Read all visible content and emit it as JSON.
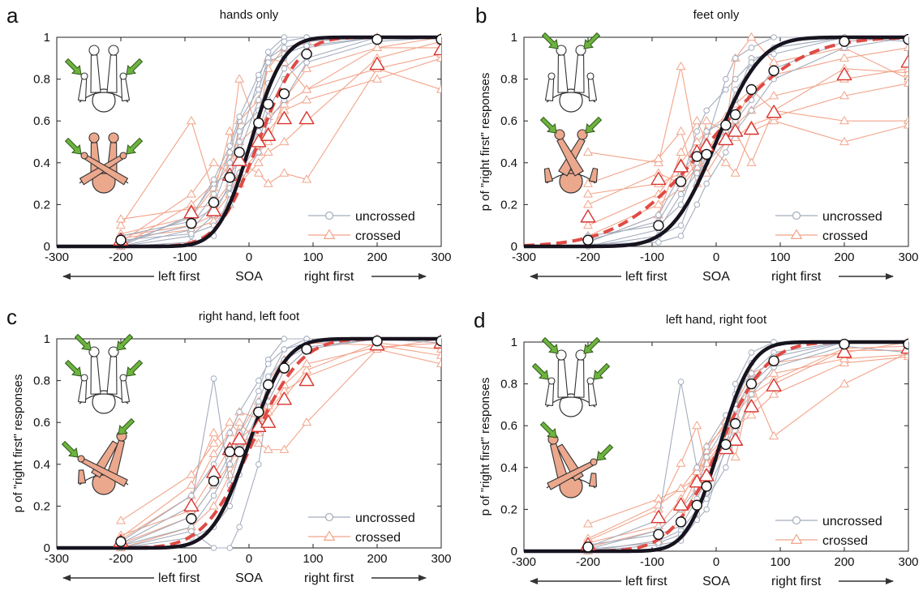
{
  "colors": {
    "uncrossed_individual": "#a4adbd",
    "crossed_individual": "#f2a48a",
    "uncrossed_fit": "#17131f",
    "crossed_fit": "#e04a44",
    "crossed_marker": "#d9342f",
    "arrow_green": "#6db33f",
    "skin": "#eca88d"
  },
  "chart_data": [
    {
      "type": "line",
      "letter": "a",
      "title": "hands only",
      "ylabel": "",
      "xlabel_center": "SOA",
      "xlabel_left": "left first",
      "xlabel_right": "right first",
      "xlim": [
        -300,
        300
      ],
      "ylim": [
        0,
        1
      ],
      "xticks": [
        -300,
        -200,
        -100,
        0,
        100,
        200,
        300
      ],
      "yticks": [
        0,
        0.2,
        0.4,
        0.6,
        0.8,
        1
      ],
      "x": [
        -200,
        -90,
        -55,
        -30,
        -15,
        15,
        30,
        55,
        90,
        200,
        300
      ],
      "fits": {
        "uncrossed_mu": 3,
        "uncrossed_sigma": 40,
        "crossed_mu": 15,
        "crossed_sigma": 50
      },
      "series": [
        {
          "name": "uncrossed",
          "values": [
            0.03,
            0.11,
            0.21,
            0.33,
            0.45,
            0.59,
            0.68,
            0.73,
            0.92,
            0.99,
            0.99
          ]
        },
        {
          "name": "crossed",
          "values": [
            0.03,
            0.16,
            0.17,
            0.34,
            0.41,
            0.5,
            0.53,
            0.61,
            0.61,
            0.87,
            0.94
          ]
        }
      ],
      "individual_uncrossed": [
        [
          0.0,
          0.05,
          0.15,
          0.3,
          0.5,
          0.8,
          0.93,
          1.0,
          1.0,
          1.0,
          1.0
        ],
        [
          0.02,
          0.1,
          0.25,
          0.45,
          0.6,
          0.75,
          0.9,
          0.98,
          1.0,
          1.0,
          1.0
        ],
        [
          0.0,
          0.15,
          0.3,
          0.35,
          0.4,
          0.55,
          0.7,
          0.85,
          0.95,
          1.0,
          1.0
        ],
        [
          0.05,
          0.12,
          0.18,
          0.28,
          0.35,
          0.5,
          0.65,
          0.8,
          0.9,
          1.0,
          1.0
        ],
        [
          0.0,
          0.08,
          0.2,
          0.4,
          0.55,
          0.65,
          0.78,
          0.9,
          1.0,
          1.0,
          1.0
        ],
        [
          0.03,
          0.06,
          0.1,
          0.2,
          0.3,
          0.45,
          0.6,
          0.7,
          0.88,
          0.98,
          1.0
        ],
        [
          0.01,
          0.14,
          0.32,
          0.48,
          0.62,
          0.82,
          0.9,
          0.95,
          0.98,
          1.0,
          1.0
        ],
        [
          0.0,
          0.02,
          0.05,
          0.25,
          0.45,
          0.7,
          0.88,
          0.92,
          0.96,
          1.0,
          1.0
        ]
      ],
      "individual_crossed": [
        [
          0.1,
          0.6,
          0.25,
          0.55,
          0.4,
          0.35,
          0.3,
          0.35,
          0.32,
          0.85,
          0.75
        ],
        [
          0.0,
          0.2,
          0.3,
          0.45,
          0.8,
          0.55,
          0.9,
          0.88,
          0.75,
          0.95,
          0.95
        ],
        [
          0.05,
          0.1,
          0.15,
          0.25,
          0.35,
          0.45,
          0.5,
          0.7,
          0.85,
          0.95,
          1.0
        ],
        [
          0.02,
          0.25,
          0.4,
          0.35,
          0.3,
          0.4,
          0.45,
          0.5,
          0.6,
          0.9,
          0.98
        ],
        [
          0.13,
          0.18,
          0.2,
          0.3,
          0.6,
          0.7,
          0.85,
          0.95,
          0.98,
          1.0,
          1.0
        ],
        [
          0.04,
          0.08,
          0.12,
          0.2,
          0.3,
          0.45,
          0.55,
          0.65,
          0.7,
          0.8,
          0.9
        ],
        [
          0.06,
          0.14,
          0.28,
          0.4,
          0.5,
          0.58,
          0.62,
          0.68,
          0.75,
          0.85,
          0.92
        ]
      ],
      "legend": [
        "uncrossed",
        "crossed"
      ],
      "icons": {
        "top_crossed": false,
        "top_label": "hands",
        "bottom_crossed": true,
        "bottom_label": "hands"
      }
    },
    {
      "type": "line",
      "letter": "b",
      "title": "feet only",
      "ylabel": "p of \"right first\" responses",
      "xlabel_center": "SOA",
      "xlabel_left": "left first",
      "xlabel_right": "right first",
      "xlim": [
        -300,
        300
      ],
      "ylim": [
        0,
        1
      ],
      "xticks": [
        -300,
        -200,
        -100,
        0,
        100,
        200,
        300
      ],
      "yticks": [
        0,
        0.2,
        0.4,
        0.6,
        0.8,
        1
      ],
      "x": [
        -200,
        -90,
        -55,
        -30,
        -15,
        15,
        30,
        55,
        90,
        200,
        300
      ],
      "fits": {
        "uncrossed_mu": 0,
        "uncrossed_sigma": 55,
        "crossed_mu": -10,
        "crossed_sigma": 110
      },
      "series": [
        {
          "name": "uncrossed",
          "values": [
            0.03,
            0.1,
            0.31,
            0.43,
            0.44,
            0.58,
            0.63,
            0.75,
            0.84,
            0.98,
            0.99
          ]
        },
        {
          "name": "crossed",
          "values": [
            0.14,
            0.32,
            0.38,
            0.45,
            0.48,
            0.51,
            0.55,
            0.56,
            0.64,
            0.82,
            0.88
          ]
        }
      ],
      "individual_uncrossed": [
        [
          0.0,
          0.05,
          0.1,
          0.3,
          0.5,
          0.8,
          0.9,
          0.95,
          1.0,
          1.0,
          1.0
        ],
        [
          0.02,
          0.15,
          0.35,
          0.45,
          0.55,
          0.6,
          0.75,
          0.85,
          0.95,
          1.0,
          0.98
        ],
        [
          0.05,
          0.1,
          0.2,
          0.4,
          0.45,
          0.55,
          0.7,
          0.9,
          0.92,
          1.0,
          1.0
        ],
        [
          0.0,
          0.08,
          0.25,
          0.35,
          0.4,
          0.5,
          0.6,
          0.7,
          0.85,
          0.98,
          1.0
        ],
        [
          0.03,
          0.12,
          0.3,
          0.55,
          0.65,
          0.75,
          0.8,
          0.88,
          0.95,
          1.0,
          1.0
        ],
        [
          0.01,
          0.02,
          0.05,
          0.2,
          0.3,
          0.45,
          0.55,
          0.65,
          0.8,
          0.95,
          1.0
        ]
      ],
      "individual_crossed": [
        [
          0.45,
          0.4,
          0.86,
          0.45,
          0.35,
          0.5,
          0.6,
          0.75,
          0.65,
          0.6,
          0.6
        ],
        [
          0.2,
          0.35,
          0.3,
          0.4,
          0.6,
          0.55,
          0.9,
          1.0,
          0.88,
          0.95,
          0.8
        ],
        [
          0.02,
          0.15,
          0.45,
          0.6,
          0.5,
          0.4,
          0.35,
          0.55,
          0.6,
          0.5,
          0.58
        ],
        [
          0.3,
          0.42,
          0.55,
          0.3,
          0.45,
          0.6,
          0.55,
          0.4,
          0.65,
          0.85,
          0.83
        ],
        [
          0.1,
          0.25,
          0.4,
          0.5,
          0.55,
          0.62,
          0.68,
          0.75,
          0.82,
          0.9,
          0.95
        ],
        [
          0.05,
          0.2,
          0.28,
          0.38,
          0.45,
          0.52,
          0.58,
          0.65,
          0.72,
          0.8,
          0.85
        ],
        [
          0.25,
          0.3,
          0.35,
          0.42,
          0.48,
          0.5,
          0.52,
          0.58,
          0.62,
          0.72,
          0.78
        ]
      ],
      "legend": [
        "uncrossed",
        "crossed"
      ],
      "icons": {
        "top_crossed": false,
        "top_label": "feet",
        "bottom_crossed": true,
        "bottom_label": "feet"
      }
    },
    {
      "type": "line",
      "letter": "c",
      "title": "right hand, left foot",
      "ylabel": "p of \"right first\" responses",
      "xlabel_center": "SOA",
      "xlabel_left": "left first",
      "xlabel_right": "right first",
      "xlim": [
        -300,
        300
      ],
      "ylim": [
        0,
        1
      ],
      "xticks": [
        -300,
        -200,
        -100,
        0,
        100,
        200,
        300
      ],
      "yticks": [
        0,
        0.2,
        0.4,
        0.6,
        0.8,
        1
      ],
      "x": [
        -200,
        -90,
        -55,
        -30,
        -15,
        15,
        30,
        55,
        90,
        200,
        300
      ],
      "fits": {
        "uncrossed_mu": 0,
        "uncrossed_sigma": 45,
        "crossed_mu": 5,
        "crossed_sigma": 60
      },
      "series": [
        {
          "name": "uncrossed",
          "values": [
            0.03,
            0.14,
            0.32,
            0.46,
            0.46,
            0.65,
            0.78,
            0.86,
            0.95,
            0.99,
            0.99
          ]
        },
        {
          "name": "crossed",
          "values": [
            0.03,
            0.2,
            0.36,
            0.47,
            0.52,
            0.58,
            0.6,
            0.71,
            0.8,
            0.97,
            0.98
          ]
        }
      ],
      "individual_uncrossed": [
        [
          0.0,
          0.05,
          0.1,
          0.2,
          0.35,
          0.6,
          0.8,
          0.95,
          1.0,
          1.0,
          1.0
        ],
        [
          0.02,
          0.2,
          0.81,
          0.3,
          0.45,
          0.65,
          0.75,
          0.9,
          0.98,
          1.0,
          1.0
        ],
        [
          0.01,
          0.1,
          0.25,
          0.4,
          0.55,
          0.75,
          0.9,
          1.0,
          1.0,
          1.0,
          1.0
        ],
        [
          0.0,
          0.08,
          0.0,
          0.0,
          0.1,
          0.4,
          0.7,
          0.85,
          0.95,
          1.0,
          0.98
        ],
        [
          0.03,
          0.25,
          0.4,
          0.55,
          0.65,
          0.8,
          0.88,
          0.95,
          0.98,
          1.0,
          1.0
        ],
        [
          0.01,
          0.15,
          0.3,
          0.45,
          0.5,
          0.7,
          0.82,
          0.9,
          0.96,
          1.0,
          1.0
        ]
      ],
      "individual_crossed": [
        [
          0.05,
          0.3,
          0.55,
          0.45,
          0.6,
          0.5,
          0.47,
          0.47,
          0.6,
          0.95,
          0.88
        ],
        [
          0.0,
          0.1,
          0.2,
          0.35,
          0.45,
          0.6,
          0.7,
          0.85,
          0.95,
          1.0,
          1.0
        ],
        [
          0.13,
          0.35,
          0.5,
          0.6,
          0.55,
          0.7,
          0.62,
          0.72,
          0.85,
          0.98,
          0.95
        ],
        [
          0.02,
          0.15,
          0.3,
          0.4,
          0.5,
          0.55,
          0.65,
          0.75,
          0.82,
          0.95,
          1.0
        ],
        [
          0.04,
          0.25,
          0.45,
          0.55,
          0.65,
          0.62,
          0.8,
          0.9,
          0.98,
          0.97,
          0.92
        ],
        [
          0.06,
          0.18,
          0.35,
          0.48,
          0.52,
          0.6,
          0.68,
          0.78,
          0.88,
          0.96,
          0.98
        ]
      ],
      "legend": [
        "uncrossed",
        "crossed"
      ],
      "icons": {
        "top_crossed": false,
        "top_label": "hand-foot",
        "bottom_crossed": true,
        "bottom_label": "hand-foot"
      }
    },
    {
      "type": "line",
      "letter": "d",
      "title": "left hand, right foot",
      "ylabel": "p of \"right first\" responses",
      "xlabel_center": "SOA",
      "xlabel_left": "left first",
      "xlabel_right": "right first",
      "xlim": [
        -300,
        300
      ],
      "ylim": [
        0,
        1
      ],
      "xticks": [
        -300,
        -200,
        -100,
        0,
        100,
        200,
        300
      ],
      "yticks": [
        0,
        0.2,
        0.4,
        0.6,
        0.8,
        1
      ],
      "x": [
        -200,
        -90,
        -55,
        -30,
        -15,
        15,
        30,
        55,
        90,
        200,
        300
      ],
      "fits": {
        "uncrossed_mu": 5,
        "uncrossed_sigma": 40,
        "crossed_mu": 5,
        "crossed_sigma": 60
      },
      "series": [
        {
          "name": "uncrossed",
          "values": [
            0.02,
            0.08,
            0.14,
            0.22,
            0.31,
            0.51,
            0.61,
            0.8,
            0.91,
            0.99,
            0.99
          ]
        },
        {
          "name": "crossed",
          "values": [
            0.03,
            0.16,
            0.22,
            0.33,
            0.36,
            0.49,
            0.53,
            0.69,
            0.79,
            0.95,
            0.97
          ]
        }
      ],
      "individual_uncrossed": [
        [
          0.0,
          0.03,
          0.05,
          0.15,
          0.2,
          0.5,
          0.8,
          0.95,
          1.0,
          1.0,
          1.0
        ],
        [
          0.01,
          0.1,
          0.2,
          0.3,
          0.45,
          0.6,
          0.75,
          0.85,
          0.95,
          1.0,
          1.0
        ],
        [
          0.02,
          0.15,
          0.81,
          0.4,
          0.5,
          0.65,
          0.7,
          0.9,
          1.0,
          1.0,
          1.0
        ],
        [
          0.0,
          0.05,
          0.1,
          0.2,
          0.25,
          0.4,
          0.55,
          0.75,
          0.88,
          0.98,
          0.95
        ],
        [
          0.03,
          0.08,
          0.12,
          0.25,
          0.35,
          0.55,
          0.68,
          0.82,
          0.93,
          1.0,
          1.0
        ],
        [
          0.01,
          0.04,
          0.08,
          0.18,
          0.28,
          0.48,
          0.62,
          0.8,
          0.9,
          1.0,
          1.0
        ]
      ],
      "individual_crossed": [
        [
          0.05,
          0.2,
          0.42,
          0.6,
          0.4,
          0.55,
          0.45,
          0.8,
          0.55,
          0.8,
          0.95
        ],
        [
          0.0,
          0.05,
          0.15,
          0.3,
          0.35,
          0.5,
          0.7,
          0.85,
          0.9,
          0.95,
          1.0
        ],
        [
          0.13,
          0.25,
          0.3,
          0.35,
          0.45,
          0.55,
          0.6,
          0.65,
          0.75,
          0.9,
          0.93
        ],
        [
          0.02,
          0.1,
          0.2,
          0.35,
          0.5,
          0.6,
          0.65,
          0.75,
          0.82,
          0.97,
          0.98
        ],
        [
          0.06,
          0.22,
          0.3,
          0.4,
          0.42,
          0.55,
          0.58,
          0.7,
          0.8,
          0.96,
          0.96
        ],
        [
          0.04,
          0.12,
          0.25,
          0.38,
          0.48,
          0.62,
          0.7,
          0.78,
          0.85,
          0.92,
          0.94
        ]
      ],
      "legend": [
        "uncrossed",
        "crossed"
      ],
      "icons": {
        "top_crossed": false,
        "top_label": "hand-foot-mirror",
        "bottom_crossed": true,
        "bottom_label": "hand-foot-mirror"
      }
    }
  ]
}
